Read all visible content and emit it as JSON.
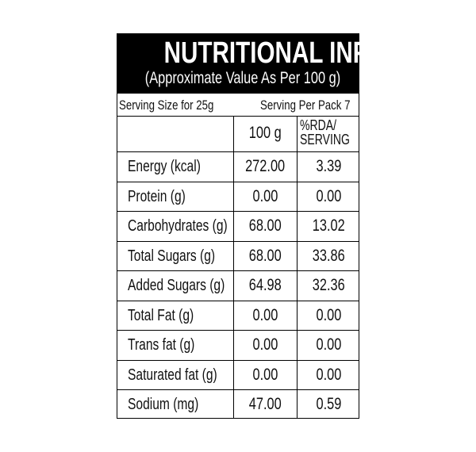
{
  "header": {
    "title": "NUTRITIONAL INFORMATION",
    "subtitle": "(Approximate Value As Per 100 g)"
  },
  "serving": {
    "size": "Serving Size for 25g",
    "per_pack": "Serving Per Pack 7"
  },
  "table": {
    "column_headers": [
      "100 g",
      [
        "%RDA/",
        "SERVING"
      ]
    ],
    "rows": [
      [
        "Energy (kcal)",
        "272.00",
        "3.39"
      ],
      [
        "Protein (g)",
        "0.00",
        "0.00"
      ],
      [
        "Carbohydrates (g)",
        "68.00",
        "13.02"
      ],
      [
        "Total Sugars (g)",
        "68.00",
        "33.86"
      ],
      [
        "Added Sugars (g)",
        "64.98",
        "32.36"
      ],
      [
        "Total Fat (g)",
        "0.00",
        "0.00"
      ],
      [
        "Trans fat (g)",
        "0.00",
        "0.00"
      ],
      [
        "Saturated fat (g)",
        "0.00",
        "0.00"
      ],
      [
        "Sodium (mg)",
        "47.00",
        "0.59"
      ]
    ]
  }
}
